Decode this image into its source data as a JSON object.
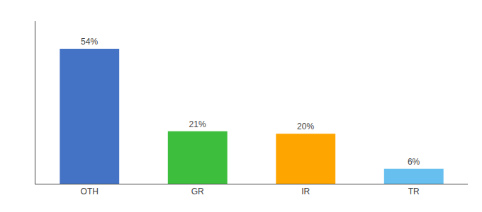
{
  "chart_data": {
    "type": "bar",
    "categories": [
      "OTH",
      "GR",
      "IR",
      "TR"
    ],
    "values": [
      54,
      21,
      20,
      6
    ],
    "value_labels": [
      "54%",
      "21%",
      "20%",
      "6%"
    ],
    "colors": [
      "#4472C4",
      "#3DBE3D",
      "#FFA500",
      "#66BFEF"
    ],
    "ylim": [
      0,
      65
    ],
    "data_labels": true,
    "tick_labels": "x",
    "grid": false
  }
}
